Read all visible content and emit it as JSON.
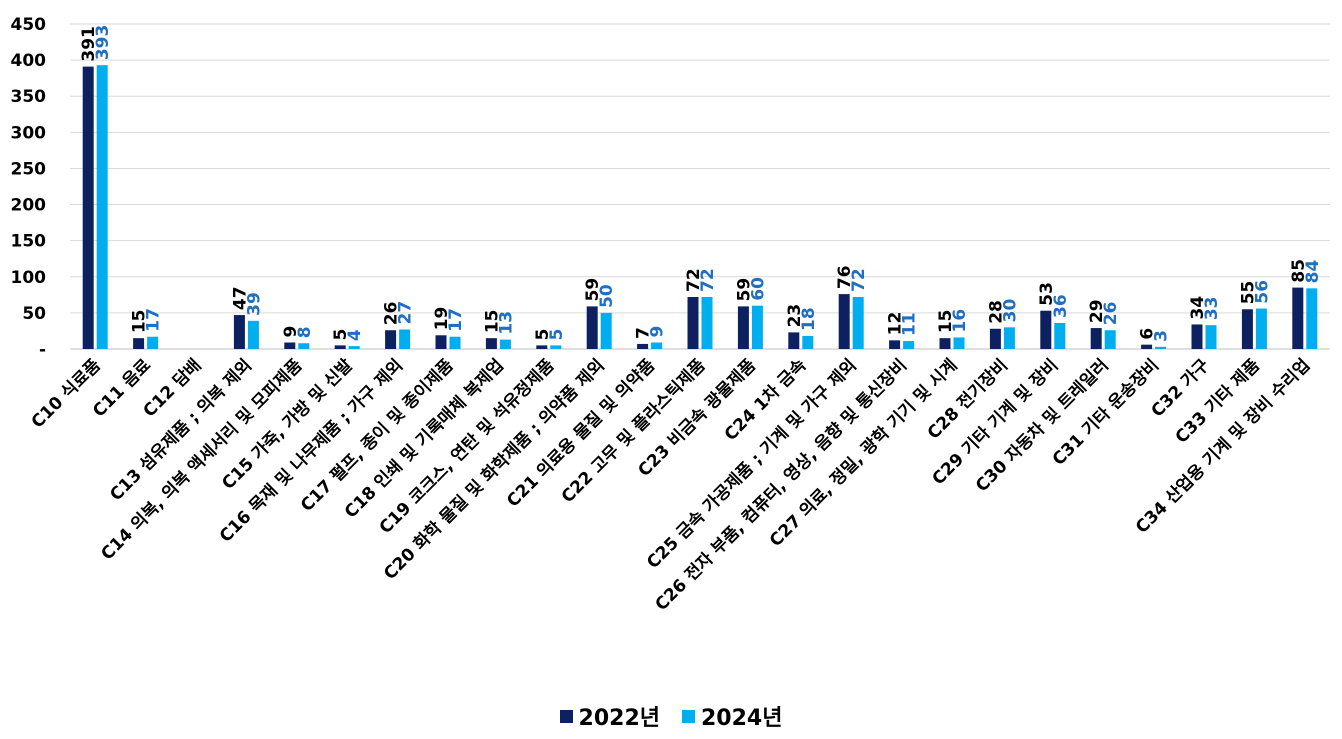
{
  "chart_data": {
    "type": "bar",
    "categories": [
      "C10 식료품",
      "C11 음료",
      "C12 담배",
      "C13 섬유제품 ; 의복 제외",
      "C14 의복, 의복 액세서리 및 모피제품",
      "C15 가죽, 가방 및 신발",
      "C16 목재 및 나무제품 ; 가구 제외",
      "C17 펄프, 종이 및 종이제품",
      "C18 인쇄 및 기록매체 복제업",
      "C19 코크스, 연탄 및 석유정제품",
      "C20 화학 물질 및 화학제품 ; 의약품 제외",
      "C21 의료용 물질 및 의약품",
      "C22 고무 및 플라스틱제품",
      "C23 비금속 광물제품",
      "C24 1차 금속",
      "C25 금속 가공제품 ; 기계 및 가구 제외",
      "C26 전자 부품, 컴퓨터, 영상, 음향 및 통신장비",
      "C27 의료, 정밀, 광학 기기 및 시계",
      "C28 전기장비",
      "C29 기타 기계 및 장비",
      "C30 자동차 및 트레일러",
      "C31 기타 운송장비",
      "C32 가구",
      "C33 기타 제품",
      "C34 산업용 기계 및 장비 수리업"
    ],
    "series": [
      {
        "name": "2022년",
        "color": "#0d2160",
        "label_color": "#000000",
        "values": [
          391,
          15,
          null,
          47,
          9,
          5,
          26,
          19,
          15,
          5,
          59,
          7,
          72,
          59,
          23,
          76,
          12,
          15,
          28,
          53,
          29,
          6,
          34,
          55,
          85
        ]
      },
      {
        "name": "2024년",
        "color": "#00aeef",
        "label_color": "#1f6fc2",
        "values": [
          393,
          17,
          null,
          39,
          8,
          4,
          27,
          17,
          13,
          5,
          50,
          9,
          72,
          60,
          18,
          72,
          11,
          16,
          30,
          36,
          26,
          3,
          33,
          56,
          84
        ]
      }
    ],
    "yticks": [
      "-",
      "50",
      "100",
      "150",
      "200",
      "250",
      "300",
      "350",
      "400",
      "450"
    ],
    "ylim": [
      0,
      450
    ],
    "grid": true,
    "legend_position": "bottom-center",
    "title": "",
    "xlabel": "",
    "ylabel": ""
  }
}
